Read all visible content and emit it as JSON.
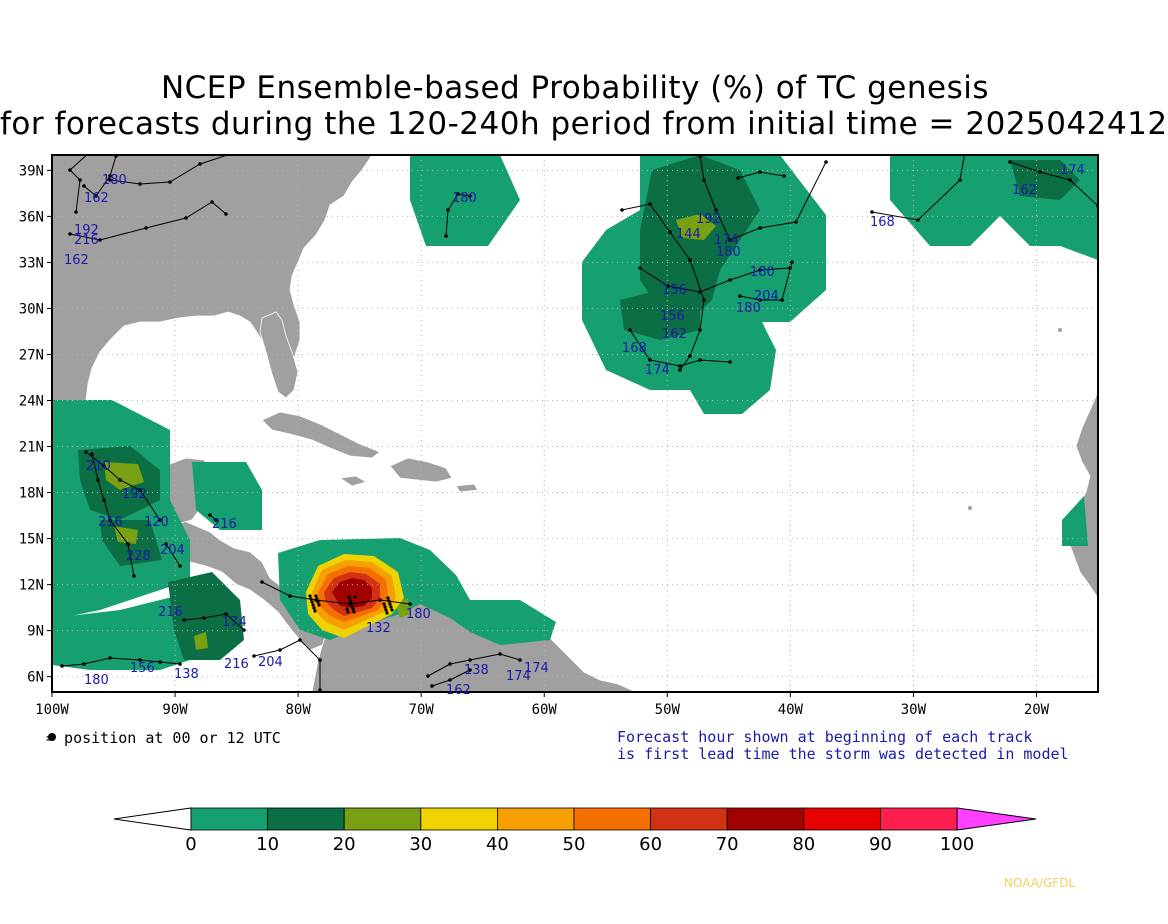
{
  "title": {
    "line1": "NCEP Ensemble-based Probability (%) of TC genesis",
    "line2": "for forecasts during the 120-240h period from initial time = 2025042412"
  },
  "axes": {
    "lat_labels": [
      "39N",
      "36N",
      "33N",
      "30N",
      "27N",
      "24N",
      "21N",
      "18N",
      "15N",
      "12N",
      "9N",
      "6N"
    ],
    "lon_labels": [
      "100W",
      "90W",
      "80W",
      "70W",
      "60W",
      "50W",
      "40W",
      "30W",
      "20W"
    ]
  },
  "notes": {
    "position": "= position at 00 or 12 UTC",
    "forecast_line1": "Forecast hour shown at beginning of each track",
    "forecast_line2": "is first lead time the storm was detected in model"
  },
  "credit": "NOAA/GFDL",
  "colorbar": {
    "ticks": [
      "0",
      "10",
      "20",
      "30",
      "40",
      "50",
      "60",
      "70",
      "80",
      "90",
      "100"
    ],
    "colors": [
      "#16a070",
      "#0b6e45",
      "#78a012",
      "#f0d200",
      "#f5a000",
      "#f56e00",
      "#d23214",
      "#a00000",
      "#e60000",
      "#ff1e50"
    ],
    "below_color": "#ffffff",
    "above_color": "#ff40ff"
  },
  "track_labels": [
    "180",
    "162",
    "192",
    "216",
    "162",
    "180",
    "168",
    "192",
    "144",
    "174",
    "180",
    "180",
    "204",
    "180",
    "156",
    "156",
    "162",
    "168",
    "174",
    "210",
    "192",
    "216",
    "120",
    "204",
    "228",
    "216",
    "216",
    "174",
    "204",
    "216",
    "180",
    "156",
    "138",
    "132",
    "180",
    "174",
    "174",
    "162",
    "138",
    "162",
    "174"
  ],
  "colors": {
    "land": "#a0a0a0",
    "ocean": "#ffffff",
    "grid": "#b4b4b4",
    "track": "#000000",
    "label": "#1a1aa8"
  }
}
